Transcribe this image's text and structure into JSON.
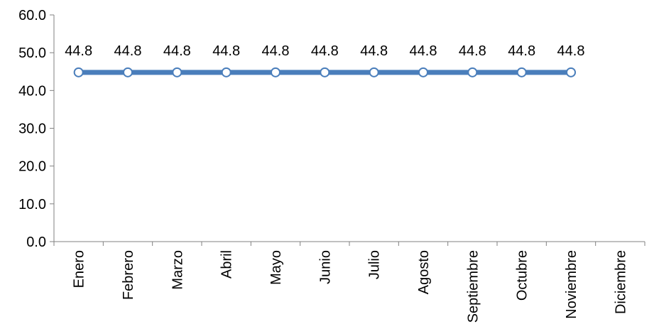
{
  "chart_data": {
    "type": "line",
    "categories": [
      "Enero",
      "Febrero",
      "Marzo",
      "Abril",
      "Mayo",
      "Junio",
      "Julio",
      "Agosto",
      "Septiembre",
      "Octubre",
      "Noviembre",
      "Diciembre"
    ],
    "series": [
      {
        "values": [
          44.8,
          44.8,
          44.8,
          44.8,
          44.8,
          44.8,
          44.8,
          44.8,
          44.8,
          44.8,
          44.8,
          null
        ],
        "data_labels": [
          "44.8",
          "44.8",
          "44.8",
          "44.8",
          "44.8",
          "44.8",
          "44.8",
          "44.8",
          "44.8",
          "44.8",
          "44.8"
        ],
        "color": "#4a7ebb"
      }
    ],
    "y_ticks": [
      "0.0",
      "10.0",
      "20.0",
      "30.0",
      "40.0",
      "50.0",
      "60.0"
    ],
    "ylim": [
      0,
      60
    ],
    "title": "",
    "xlabel": "",
    "ylabel": "",
    "grid": false,
    "legend": "none",
    "colors": {
      "line": "#4a7ebb",
      "marker_fill": "#ffffff",
      "axis": "#808080"
    }
  }
}
